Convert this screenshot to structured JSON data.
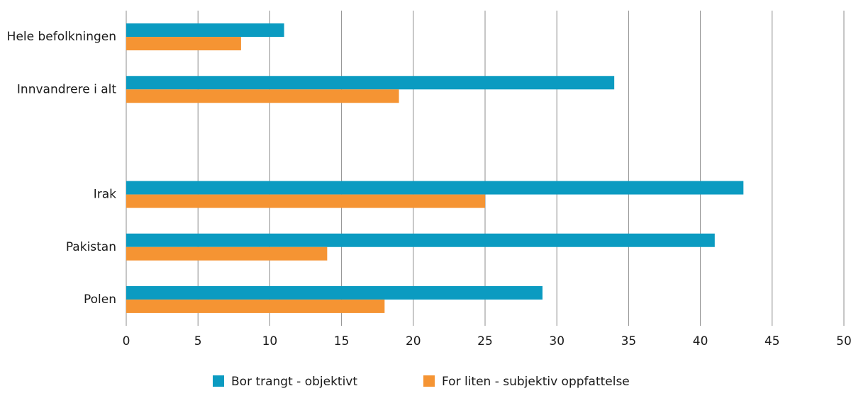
{
  "chart_data": {
    "type": "hbar",
    "categories": [
      "Hele befolkningen",
      "Innvandrere i alt",
      null,
      "Irak",
      "Pakistan",
      "Polen"
    ],
    "series": [
      {
        "name": "Bor trangt - objektivt",
        "color": "#0b9bc1",
        "values": [
          11,
          34,
          null,
          43,
          41,
          29
        ]
      },
      {
        "name": "For liten - subjektiv oppfattelse",
        "color": "#f59433",
        "values": [
          8,
          19,
          null,
          25,
          14,
          18
        ]
      }
    ],
    "xlim": [
      0,
      50
    ],
    "xticks": [
      0,
      5,
      10,
      15,
      20,
      25,
      30,
      35,
      40,
      45,
      50
    ],
    "grid": true,
    "legend": "bottom"
  }
}
